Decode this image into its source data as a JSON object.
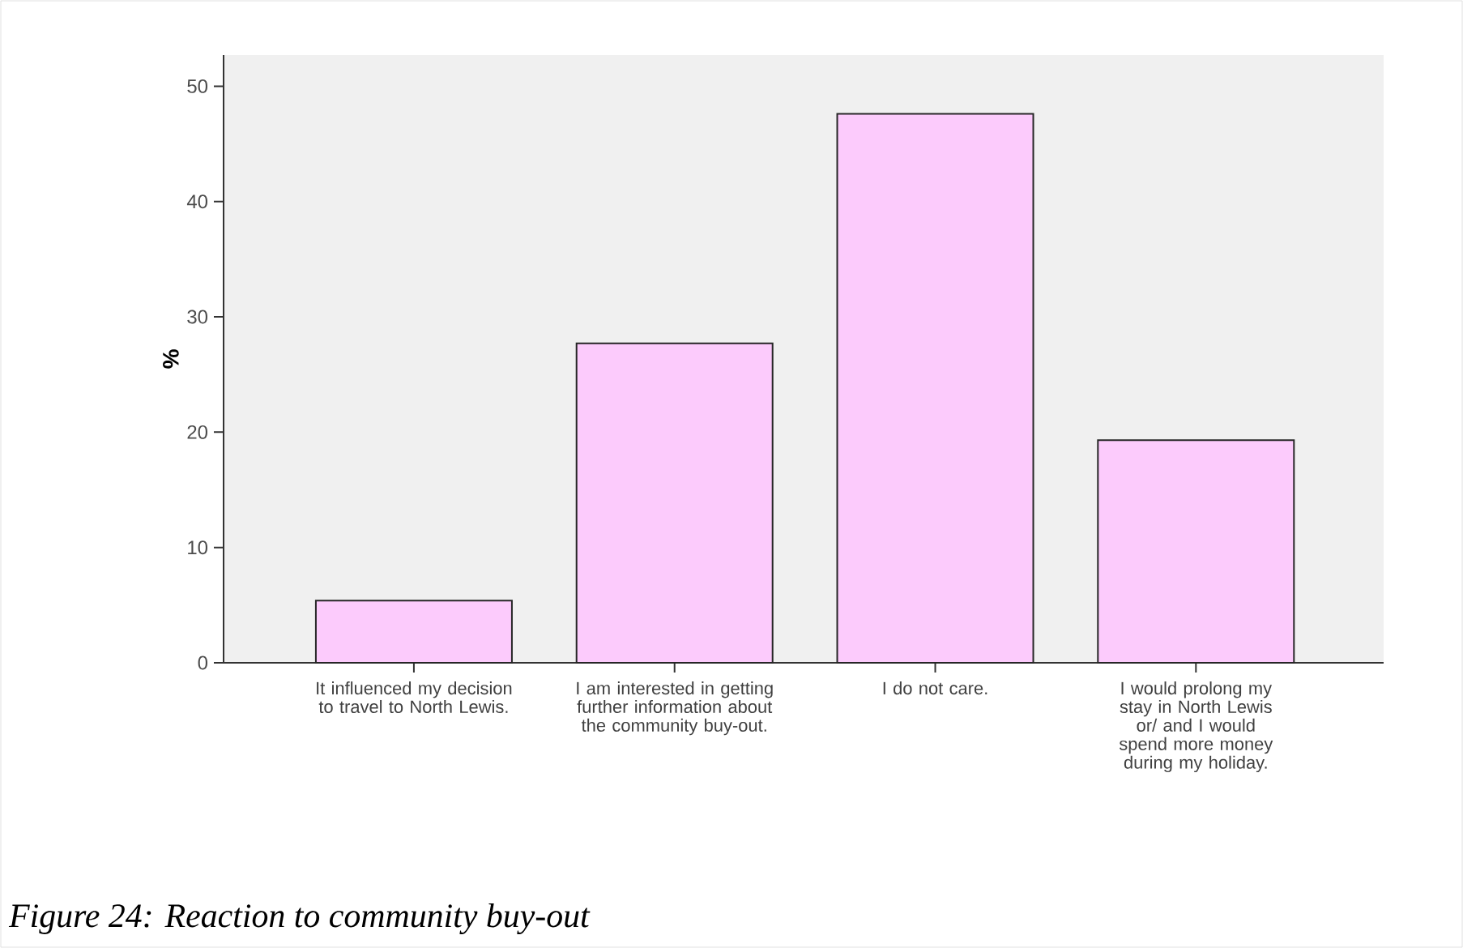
{
  "chart_data": {
    "type": "bar",
    "ylabel": "%",
    "categories": [
      "It influenced my decision to travel to North Lewis.",
      "I am interested in getting further information about the community buy-out.",
      "I do not care.",
      "I would prolong my stay in North Lewis or/ and I would spend more money during my holiday."
    ],
    "values": [
      5.4,
      27.7,
      47.6,
      19.3
    ],
    "color": "#fccbfc",
    "ylim": [
      0,
      52.7
    ],
    "yticks": [
      0,
      10,
      20,
      30,
      40,
      50
    ],
    "annotations": [
      "Figure 24: Reaction to community buy-out"
    ]
  }
}
